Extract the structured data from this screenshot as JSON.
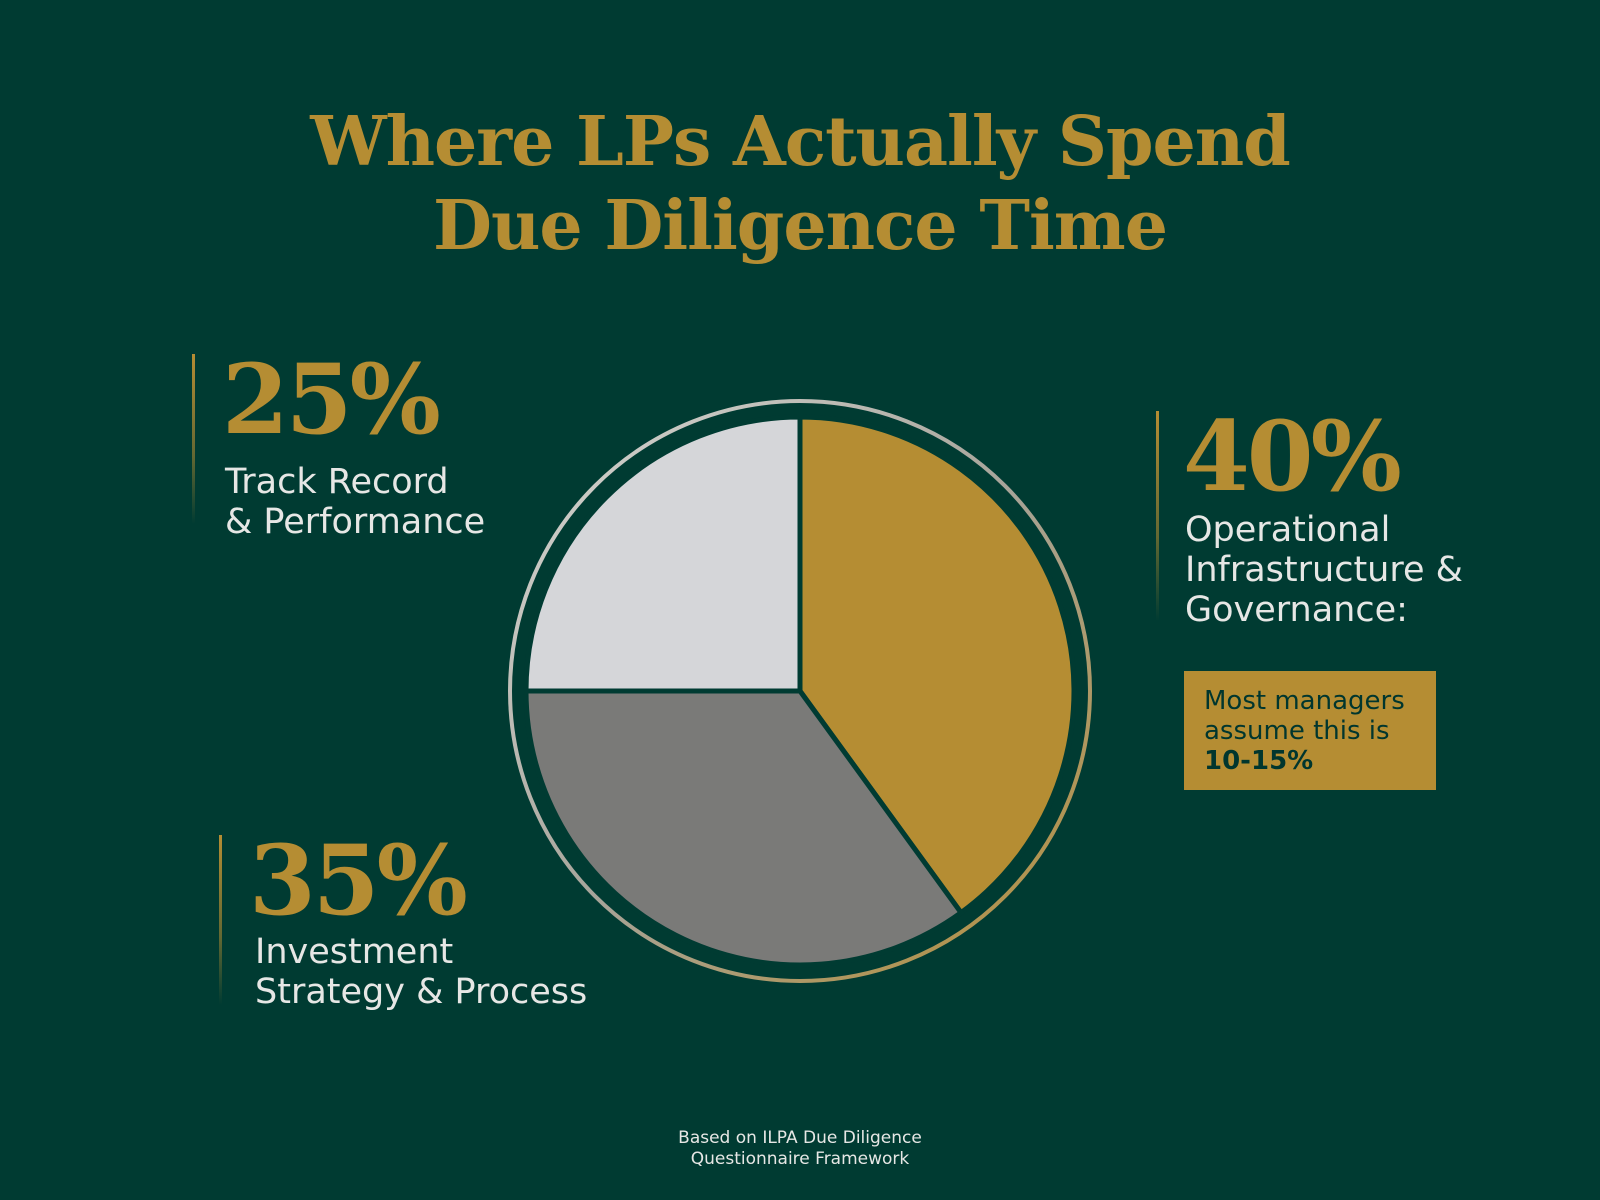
{
  "title": {
    "line1": "Where LPs Actually Spend",
    "line2": "Due Diligence Time"
  },
  "callouts": {
    "track": {
      "pct": "25%",
      "label_line1": "Track Record",
      "label_line2": "& Performance"
    },
    "invest": {
      "pct": "35%",
      "label_line1": "Investment",
      "label_line2": "Strategy & Process"
    },
    "ops": {
      "pct": "40%",
      "label_line1": "Operational",
      "label_line2": "Infrastructure &",
      "label_line3": "Governance:"
    }
  },
  "note": {
    "line1": "Most managers",
    "line2": "assume this is",
    "line3": "10-15%"
  },
  "footer": {
    "line1": "Based on ILPA Due Diligence",
    "line2": "Questionnaire Framework"
  },
  "colors": {
    "background": "#003b32",
    "gold": "#b58d33",
    "light": "#d5d6d9",
    "gray": "#7a7a78",
    "text": "#e6e7e5"
  },
  "chart_data": {
    "type": "pie",
    "start": "12 o'clock",
    "direction": "clockwise",
    "categories": [
      "Operational Infrastructure & Governance",
      "Investment Strategy & Process",
      "Track Record & Performance"
    ],
    "values": [
      40,
      35,
      25
    ],
    "colors": [
      "#b58d33",
      "#7a7a78",
      "#d5d6d9"
    ]
  }
}
